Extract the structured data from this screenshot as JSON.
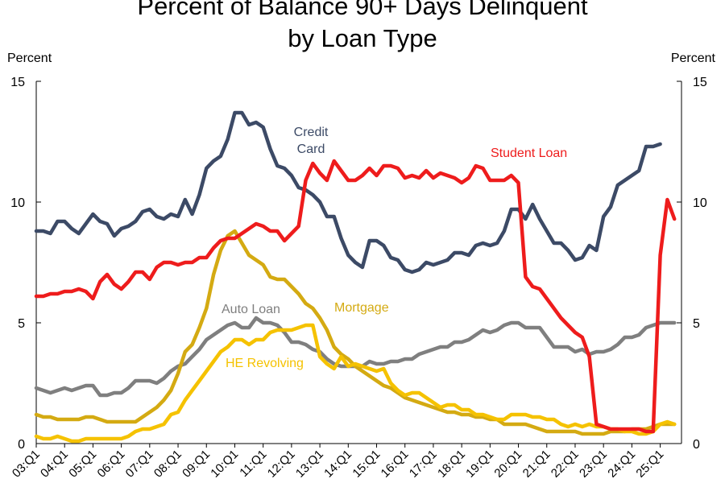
{
  "title_line1": "Percent of Balance 90+ Days Delinquent",
  "title_line2": "by Loan Type",
  "left_axis_unit": "Percent",
  "right_axis_unit": "Percent",
  "chart_data": {
    "type": "line",
    "title": "Percent of Balance 90+ Days Delinquent by Loan Type",
    "ylabel": "Percent",
    "ylim": [
      0,
      15
    ],
    "yticks": [
      0,
      5,
      10,
      15
    ],
    "xtick_labels": [
      "03:Q1",
      "04:Q1",
      "05:Q1",
      "06:Q1",
      "07:Q1",
      "08:Q1",
      "09:Q1",
      "10:Q1",
      "11:Q1",
      "12:Q1",
      "13:Q1",
      "14:Q1",
      "15:Q1",
      "16:Q1",
      "17:Q1",
      "18:Q1",
      "19:Q1",
      "20:Q1",
      "21:Q1",
      "22:Q1",
      "23:Q1",
      "24:Q1",
      "25:Q1"
    ],
    "x_start": "2003:Q1",
    "grid": false,
    "series": [
      {
        "name": "Credit Card",
        "label_lines": [
          "Credit",
          "Card"
        ],
        "color": "#3c4a66",
        "values": [
          8.8,
          8.8,
          8.7,
          9.2,
          9.2,
          8.9,
          8.7,
          9.1,
          9.5,
          9.2,
          9.1,
          8.6,
          8.9,
          9.0,
          9.2,
          9.6,
          9.7,
          9.4,
          9.3,
          9.5,
          9.4,
          10.1,
          9.5,
          10.3,
          11.4,
          11.7,
          11.9,
          12.6,
          13.7,
          13.7,
          13.2,
          13.3,
          13.1,
          12.2,
          11.5,
          11.4,
          11.1,
          10.6,
          10.5,
          10.3,
          10.0,
          9.4,
          9.4,
          8.5,
          7.8,
          7.5,
          7.3,
          8.4,
          8.4,
          8.2,
          7.7,
          7.6,
          7.2,
          7.1,
          7.2,
          7.5,
          7.4,
          7.5,
          7.6,
          7.9,
          7.9,
          7.8,
          8.2,
          8.3,
          8.2,
          8.3,
          8.8,
          9.7,
          9.7,
          9.3,
          9.9,
          9.3,
          8.8,
          8.3,
          8.3,
          8.0,
          7.6,
          7.7,
          8.2,
          8.0,
          9.4,
          9.8,
          10.7,
          10.9,
          11.1,
          11.3,
          12.3,
          12.3,
          12.4
        ]
      },
      {
        "name": "Student Loan",
        "label_lines": [
          "Student Loan"
        ],
        "color": "#ee1c1c",
        "values": [
          6.1,
          6.1,
          6.2,
          6.2,
          6.3,
          6.3,
          6.4,
          6.3,
          6.0,
          6.7,
          7.0,
          6.6,
          6.4,
          6.7,
          7.1,
          7.1,
          6.8,
          7.3,
          7.5,
          7.5,
          7.4,
          7.5,
          7.5,
          7.7,
          7.7,
          8.1,
          8.4,
          8.5,
          8.5,
          8.7,
          8.9,
          9.1,
          9.0,
          8.8,
          8.8,
          8.4,
          8.7,
          9.0,
          10.9,
          11.6,
          11.2,
          10.9,
          11.7,
          11.3,
          10.9,
          10.9,
          11.1,
          11.4,
          11.1,
          11.5,
          11.5,
          11.4,
          11.0,
          11.1,
          11.0,
          11.3,
          11.0,
          11.2,
          11.1,
          11.0,
          10.8,
          11.0,
          11.5,
          11.4,
          10.9,
          10.9,
          10.9,
          11.1,
          10.8,
          6.9,
          6.5,
          6.4,
          6.0,
          5.6,
          5.2,
          4.9,
          4.6,
          4.4,
          3.6,
          0.8,
          0.7,
          0.6,
          0.6,
          0.6,
          0.6,
          0.6,
          0.5,
          0.5,
          7.8,
          10.1,
          9.3
        ]
      },
      {
        "name": "Auto Loan",
        "label_lines": [
          "Auto Loan"
        ],
        "color": "#7f7f7f",
        "values": [
          2.3,
          2.2,
          2.1,
          2.2,
          2.3,
          2.2,
          2.3,
          2.4,
          2.4,
          2.0,
          2.0,
          2.1,
          2.1,
          2.3,
          2.6,
          2.6,
          2.6,
          2.5,
          2.7,
          3.0,
          3.2,
          3.3,
          3.6,
          3.9,
          4.3,
          4.5,
          4.7,
          4.9,
          5.0,
          4.8,
          4.8,
          5.2,
          5.0,
          5.0,
          4.9,
          4.6,
          4.2,
          4.2,
          4.1,
          3.9,
          3.8,
          3.5,
          3.3,
          3.2,
          3.2,
          3.2,
          3.2,
          3.4,
          3.3,
          3.3,
          3.4,
          3.4,
          3.5,
          3.5,
          3.7,
          3.8,
          3.9,
          4.0,
          4.0,
          4.2,
          4.2,
          4.3,
          4.5,
          4.7,
          4.6,
          4.7,
          4.9,
          5.0,
          5.0,
          4.8,
          4.8,
          4.8,
          4.4,
          4.0,
          4.0,
          4.0,
          3.8,
          3.9,
          3.7,
          3.8,
          3.8,
          3.9,
          4.1,
          4.4,
          4.4,
          4.5,
          4.8,
          4.9,
          5.0,
          5.0,
          5.0
        ]
      },
      {
        "name": "Mortgage",
        "label_lines": [
          "Mortgage"
        ],
        "color": "#d4aa12",
        "values": [
          1.2,
          1.1,
          1.1,
          1.0,
          1.0,
          1.0,
          1.0,
          1.1,
          1.1,
          1.0,
          0.9,
          0.9,
          0.9,
          0.9,
          0.9,
          1.1,
          1.3,
          1.5,
          1.8,
          2.2,
          2.9,
          3.8,
          4.1,
          4.8,
          5.6,
          7.0,
          8.0,
          8.6,
          8.8,
          8.3,
          7.8,
          7.6,
          7.4,
          6.9,
          6.8,
          6.8,
          6.5,
          6.2,
          5.8,
          5.6,
          5.2,
          4.7,
          4.0,
          3.7,
          3.5,
          3.2,
          3.0,
          2.8,
          2.6,
          2.4,
          2.3,
          2.1,
          1.9,
          1.8,
          1.7,
          1.6,
          1.5,
          1.4,
          1.3,
          1.3,
          1.2,
          1.2,
          1.1,
          1.1,
          1.0,
          1.0,
          0.8,
          0.8,
          0.8,
          0.8,
          0.7,
          0.6,
          0.5,
          0.5,
          0.5,
          0.5,
          0.5,
          0.4,
          0.4,
          0.4,
          0.4,
          0.5,
          0.5,
          0.5,
          0.6,
          0.6,
          0.6,
          0.7,
          0.8,
          0.8,
          0.8
        ]
      },
      {
        "name": "HE Revolving",
        "label_lines": [
          "HE Revolving"
        ],
        "color": "#f5c200",
        "values": [
          0.3,
          0.2,
          0.2,
          0.3,
          0.2,
          0.1,
          0.1,
          0.2,
          0.2,
          0.2,
          0.2,
          0.2,
          0.2,
          0.3,
          0.5,
          0.6,
          0.6,
          0.7,
          0.8,
          1.2,
          1.3,
          1.8,
          2.2,
          2.6,
          3.0,
          3.4,
          3.8,
          4.0,
          4.3,
          4.3,
          4.1,
          4.3,
          4.3,
          4.6,
          4.7,
          4.7,
          4.7,
          4.8,
          4.9,
          4.9,
          3.6,
          3.3,
          3.1,
          3.6,
          3.2,
          3.3,
          3.2,
          3.1,
          3.0,
          3.1,
          2.5,
          2.2,
          2.0,
          2.1,
          2.1,
          1.9,
          1.7,
          1.5,
          1.6,
          1.6,
          1.4,
          1.4,
          1.2,
          1.2,
          1.1,
          1.0,
          1.0,
          1.2,
          1.2,
          1.2,
          1.1,
          1.1,
          1.0,
          1.0,
          0.8,
          0.7,
          0.8,
          0.7,
          0.8,
          0.7,
          0.7,
          0.6,
          0.6,
          0.5,
          0.5,
          0.4,
          0.4,
          0.5,
          0.8,
          0.9,
          0.8
        ]
      }
    ]
  }
}
